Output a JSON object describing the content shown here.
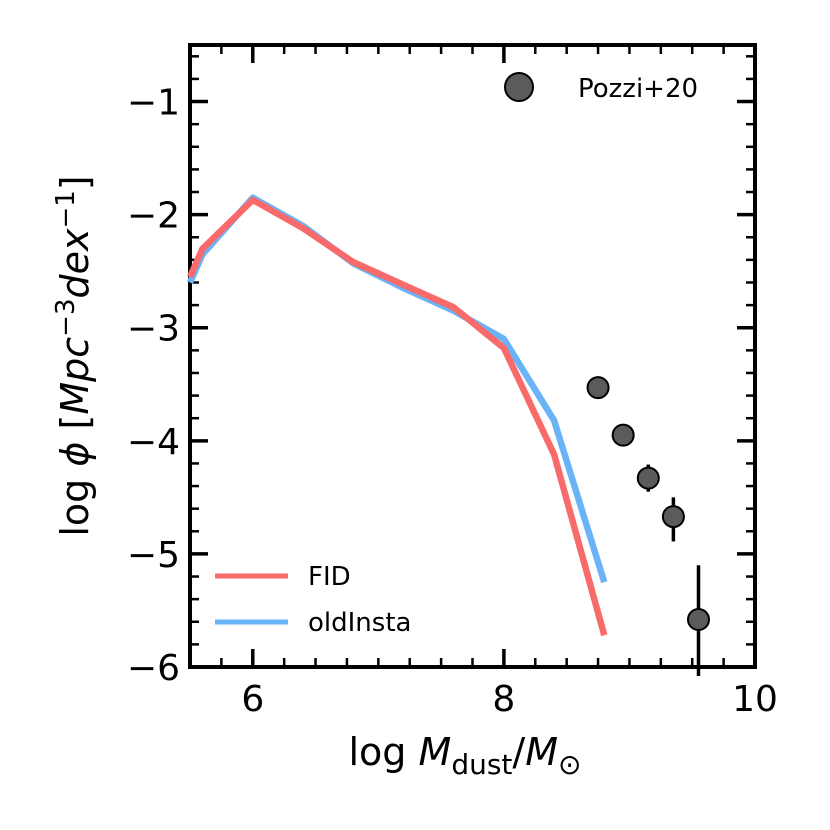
{
  "chart_data": {
    "type": "line",
    "title": "",
    "xlabel_parts": {
      "prefix": "log ",
      "var": "M",
      "sub": "dust",
      "slash": "/",
      "var2": "M",
      "sub2": "⊙"
    },
    "ylabel_parts": {
      "prefix": "log ",
      "phi": "ϕ",
      "open": " [",
      "mpc": "Mpc",
      "exp1": "−3",
      "dex": "dex",
      "exp2": "−1",
      "close": "]"
    },
    "xlim": [
      5.5,
      10
    ],
    "ylim": [
      -6,
      -0.5
    ],
    "xticks": [
      6,
      8,
      10
    ],
    "xtick_labels": [
      "6",
      "8",
      "10"
    ],
    "yticks": [
      -6,
      -5,
      -4,
      -3,
      -2,
      -1
    ],
    "ytick_labels": [
      "−6",
      "−5",
      "−4",
      "−3",
      "−2",
      "−1"
    ],
    "series": [
      {
        "name": "FID",
        "color": "#f96a6a",
        "x": [
          5.5,
          5.6,
          6.0,
          6.4,
          6.8,
          7.2,
          7.6,
          8.0,
          8.4,
          8.8
        ],
        "y": [
          -2.55,
          -2.3,
          -1.87,
          -2.12,
          -2.42,
          -2.62,
          -2.82,
          -3.18,
          -4.12,
          -5.72
        ]
      },
      {
        "name": "oldInsta",
        "color": "#6bb3f7",
        "x": [
          5.5,
          5.6,
          6.0,
          6.4,
          6.8,
          7.2,
          7.6,
          8.0,
          8.4,
          8.8
        ],
        "y": [
          -2.6,
          -2.35,
          -1.85,
          -2.1,
          -2.43,
          -2.65,
          -2.85,
          -3.1,
          -3.82,
          -5.25
        ]
      }
    ],
    "scatter": {
      "name": "Pozzi+20",
      "color": "#5b5b5b",
      "x": [
        8.75,
        8.95,
        9.15,
        9.35,
        9.55
      ],
      "y": [
        -3.53,
        -3.95,
        -4.33,
        -4.67,
        -5.58
      ],
      "err_low": [
        0.05,
        0.05,
        0.12,
        0.22,
        0.5
      ],
      "err_high": [
        0.05,
        0.05,
        0.12,
        0.17,
        0.48
      ]
    },
    "legend_top": "Pozzi+20",
    "legend_bottom": [
      "FID",
      "oldInsta"
    ]
  }
}
